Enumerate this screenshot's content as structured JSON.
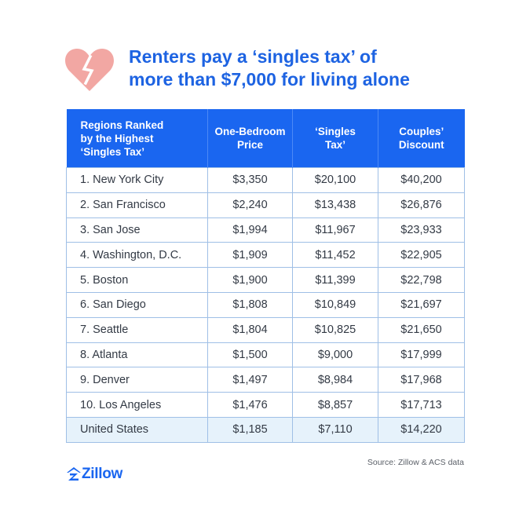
{
  "header": {
    "title_line1": "Renters pay a ‘singles tax’ of",
    "title_line2": "more than $7,000 for living alone",
    "icon": "broken-heart-icon",
    "icon_color": "#F2A7A3"
  },
  "colors": {
    "accent": "#1A66F0",
    "title": "#1D63E2",
    "total_row_bg": "#E6F2FB",
    "cell_border": "#9fbfe6"
  },
  "chart_data": {
    "type": "table",
    "title": "Renters pay a ‘singles tax’ of more than $7,000 for living alone",
    "columns": [
      {
        "lines": [
          "Regions Ranked",
          "by the Highest",
          "‘Singles Tax’"
        ]
      },
      {
        "lines": [
          "One-Bedroom",
          "Price"
        ]
      },
      {
        "lines": [
          "‘Singles",
          "Tax’"
        ]
      },
      {
        "lines": [
          "Couples’",
          "Discount"
        ]
      }
    ],
    "rows": [
      [
        "1. New York City",
        "$3,350",
        "$20,100",
        "$40,200"
      ],
      [
        "2. San Francisco",
        "$2,240",
        "$13,438",
        "$26,876"
      ],
      [
        "3. San Jose",
        "$1,994",
        "$11,967",
        "$23,933"
      ],
      [
        "4. Washington, D.C.",
        "$1,909",
        "$11,452",
        "$22,905"
      ],
      [
        "5. Boston",
        "$1,900",
        "$11,399",
        "$22,798"
      ],
      [
        "6. San Diego",
        "$1,808",
        "$10,849",
        "$21,697"
      ],
      [
        "7. Seattle",
        "$1,804",
        "$10,825",
        "$21,650"
      ],
      [
        "8. Atlanta",
        "$1,500",
        "$9,000",
        "$17,999"
      ],
      [
        "9. Denver",
        "$1,497",
        "$8,984",
        "$17,968"
      ],
      [
        "10. Los Angeles",
        "$1,476",
        "$8,857",
        "$17,713"
      ]
    ],
    "total_row": [
      "United States",
      "$1,185",
      "$7,110",
      "$14,220"
    ]
  },
  "footer": {
    "source": "Source: Zillow & ACS data",
    "logo_text": "Zillow",
    "logo_icon": "zillow-logo-icon"
  }
}
